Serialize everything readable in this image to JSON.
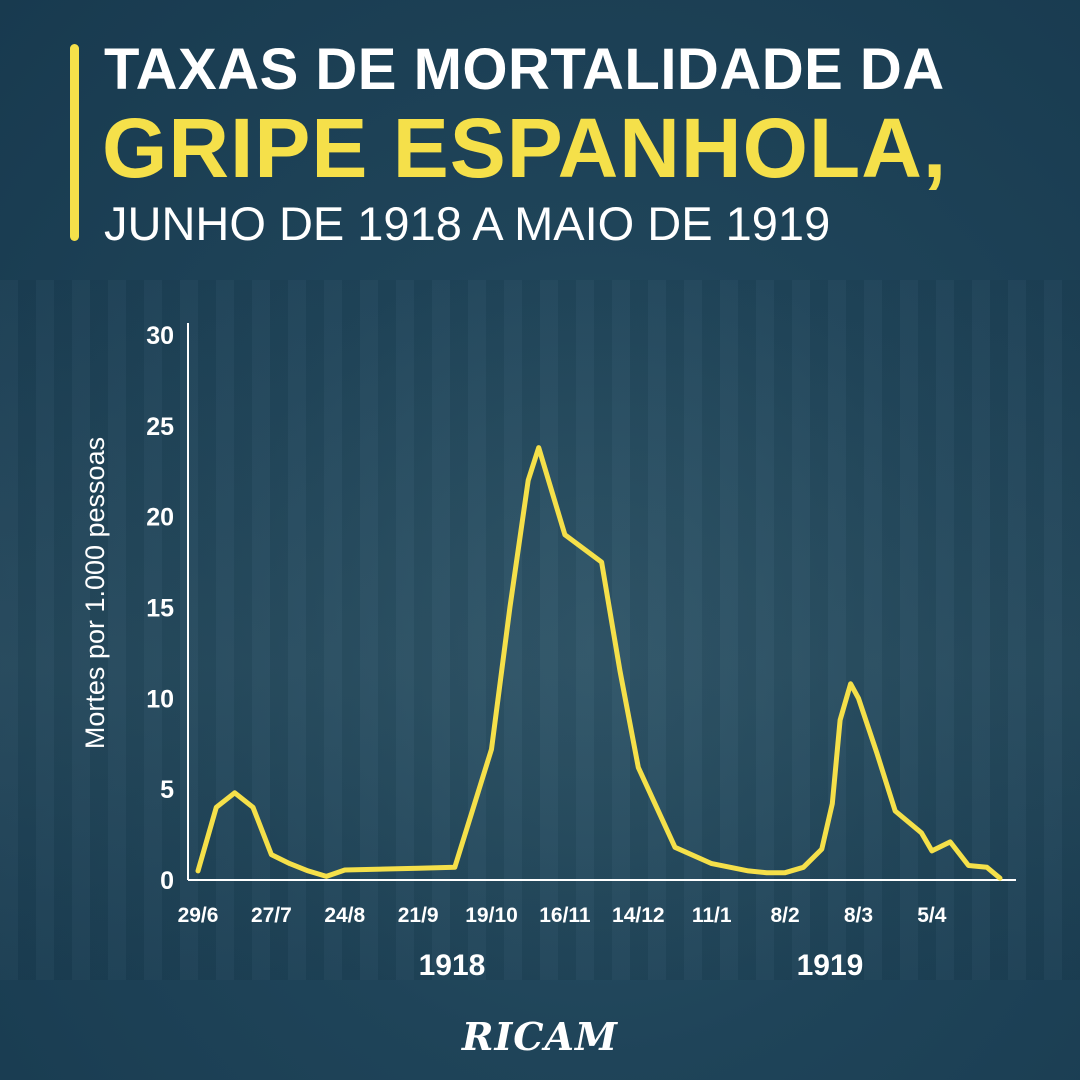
{
  "header": {
    "title_line1": "TAXAS DE MORTALIDADE DA",
    "title_line2": "GRIPE ESPANHOLA,",
    "subtitle": "JUNHO DE 1918 A MAIO DE 1919"
  },
  "brand": {
    "logo_text": "RICAM"
  },
  "colors": {
    "background": "#1f4459",
    "accent": "#f5e04a",
    "text": "#ffffff"
  },
  "chart_data": {
    "type": "line",
    "title": "",
    "xlabel": "",
    "ylabel": "Mortes por 1.000 pessoas",
    "ylim": [
      0,
      30
    ],
    "yticks": [
      0,
      5,
      10,
      15,
      20,
      25,
      30
    ],
    "grid": false,
    "x_tick_labels": [
      "29/6",
      "27/7",
      "24/8",
      "21/9",
      "19/10",
      "16/11",
      "14/12",
      "11/1",
      "8/2",
      "8/3",
      "5/4"
    ],
    "year_labels": [
      "1918",
      "1919"
    ],
    "series": [
      {
        "color": "#f5e04a",
        "points": [
          {
            "x": "1918-06-29",
            "y": 0.5
          },
          {
            "x": "1918-07-06",
            "y": 4.0
          },
          {
            "x": "1918-07-13",
            "y": 4.8
          },
          {
            "x": "1918-07-20",
            "y": 4.0
          },
          {
            "x": "1918-07-27",
            "y": 1.4
          },
          {
            "x": "1918-08-03",
            "y": 0.9
          },
          {
            "x": "1918-08-10",
            "y": 0.5
          },
          {
            "x": "1918-08-17",
            "y": 0.2
          },
          {
            "x": "1918-08-24",
            "y": 0.55
          },
          {
            "x": "1918-09-21",
            "y": 0.65
          },
          {
            "x": "1918-10-05",
            "y": 0.7
          },
          {
            "x": "1918-10-19",
            "y": 7.2
          },
          {
            "x": "1918-10-26",
            "y": 15.0
          },
          {
            "x": "1918-11-02",
            "y": 22.0
          },
          {
            "x": "1918-11-06",
            "y": 23.8
          },
          {
            "x": "1918-11-16",
            "y": 19.0
          },
          {
            "x": "1918-11-30",
            "y": 17.5
          },
          {
            "x": "1918-12-07",
            "y": 11.5
          },
          {
            "x": "1918-12-14",
            "y": 6.2
          },
          {
            "x": "1918-12-28",
            "y": 1.8
          },
          {
            "x": "1919-01-11",
            "y": 0.9
          },
          {
            "x": "1919-01-25",
            "y": 0.5
          },
          {
            "x": "1919-02-01",
            "y": 0.4
          },
          {
            "x": "1919-02-08",
            "y": 0.4
          },
          {
            "x": "1919-02-15",
            "y": 0.7
          },
          {
            "x": "1919-02-22",
            "y": 1.7
          },
          {
            "x": "1919-02-26",
            "y": 4.2
          },
          {
            "x": "1919-03-01",
            "y": 8.8
          },
          {
            "x": "1919-03-05",
            "y": 10.8
          },
          {
            "x": "1919-03-08",
            "y": 10.0
          },
          {
            "x": "1919-03-15",
            "y": 7.0
          },
          {
            "x": "1919-03-22",
            "y": 3.8
          },
          {
            "x": "1919-04-01",
            "y": 2.6
          },
          {
            "x": "1919-04-05",
            "y": 1.6
          },
          {
            "x": "1919-04-12",
            "y": 2.1
          },
          {
            "x": "1919-04-19",
            "y": 0.8
          },
          {
            "x": "1919-04-26",
            "y": 0.7
          },
          {
            "x": "1919-05-01",
            "y": 0.1
          }
        ]
      }
    ]
  }
}
